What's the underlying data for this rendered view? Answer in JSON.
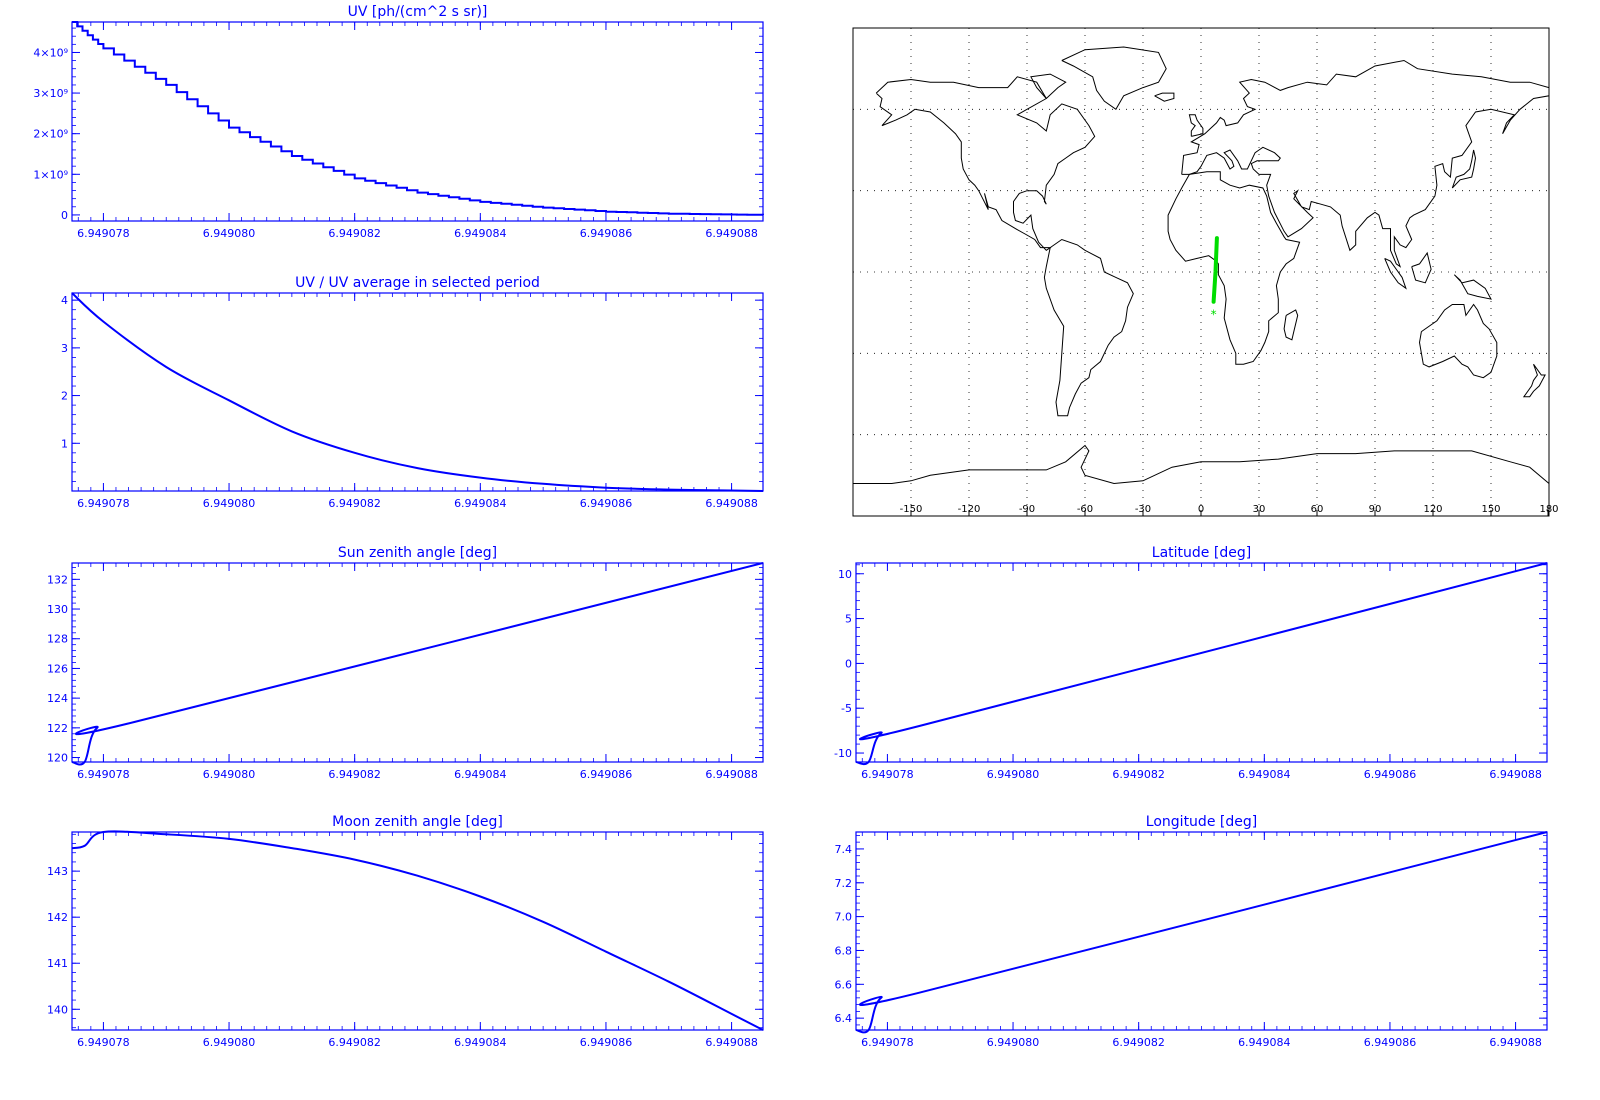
{
  "chart_data": [
    {
      "type": "step",
      "title": "UV [ph/(cm^2 s sr)]",
      "xlim": [
        6.9490775,
        6.9490885
      ],
      "ylim": [
        -0.15,
        4.75
      ],
      "x_tick_labels": [
        "6.949078",
        "6.949080",
        "6.949082",
        "6.949084",
        "6.949086",
        "6.949088"
      ],
      "y_ticks": [
        0,
        1,
        2,
        3,
        4
      ],
      "y_tick_labels": [
        "0",
        "1×10⁹",
        "2×10⁹",
        "3×10⁹",
        "4×10⁹"
      ],
      "y_unit_multiplier": 1000000000,
      "color": "#0000ff",
      "series": [
        {
          "x": [
            6.9490775,
            6.949078,
            6.949079,
            6.94908,
            6.949081,
            6.949082,
            6.949083,
            6.949084,
            6.949085,
            6.949086,
            6.949087,
            6.949088,
            6.9490885
          ],
          "y": [
            4.75,
            4.1,
            3.2,
            2.15,
            1.45,
            0.9,
            0.55,
            0.32,
            0.18,
            0.08,
            0.03,
            0.01,
            0.0
          ]
        }
      ]
    },
    {
      "type": "line",
      "title": "UV / UV average in selected period",
      "xlim": [
        6.9490775,
        6.9490885
      ],
      "ylim": [
        0,
        4.15
      ],
      "x_tick_labels": [
        "6.949078",
        "6.949080",
        "6.949082",
        "6.949084",
        "6.949086",
        "6.949088"
      ],
      "y_ticks": [
        1,
        2,
        3,
        4
      ],
      "y_tick_labels": [
        "1",
        "2",
        "3",
        "4"
      ],
      "color": "#0000ff",
      "series": [
        {
          "x": [
            6.9490775,
            6.949078,
            6.949079,
            6.94908,
            6.949081,
            6.949082,
            6.949083,
            6.949084,
            6.949085,
            6.949086,
            6.949087,
            6.949088,
            6.9490885
          ],
          "y": [
            4.15,
            3.55,
            2.6,
            1.9,
            1.25,
            0.8,
            0.48,
            0.28,
            0.15,
            0.07,
            0.03,
            0.01,
            0.0
          ]
        }
      ]
    },
    {
      "type": "line",
      "title": "Sun zenith angle [deg]",
      "xlim": [
        6.9490775,
        6.9490885
      ],
      "ylim": [
        119.7,
        133.1
      ],
      "x_tick_labels": [
        "6.949078",
        "6.949080",
        "6.949082",
        "6.949084",
        "6.949086",
        "6.949088"
      ],
      "y_ticks": [
        120,
        122,
        124,
        126,
        128,
        130,
        132
      ],
      "y_tick_labels": [
        "120",
        "122",
        "124",
        "126",
        "128",
        "130",
        "132"
      ],
      "color": "#0000ff",
      "series": [
        {
          "x": [
            6.9490775,
            6.9490777,
            6.9490779,
            6.9490785,
            6.9490885
          ],
          "y": [
            119.7,
            119.7,
            122.0,
            122.4,
            133.1
          ]
        }
      ]
    },
    {
      "type": "line",
      "title": "Latitude [deg]",
      "xlim": [
        6.9490775,
        6.9490885
      ],
      "ylim": [
        -11,
        11.2
      ],
      "x_tick_labels": [
        "6.949078",
        "6.949080",
        "6.949082",
        "6.949084",
        "6.949086",
        "6.949088"
      ],
      "y_ticks": [
        -10,
        -5,
        0,
        5,
        10
      ],
      "y_tick_labels": [
        "-10",
        "-5",
        "0",
        "5",
        "10"
      ],
      "color": "#0000ff",
      "series": [
        {
          "x": [
            6.9490775,
            6.9490777,
            6.9490779,
            6.9490785,
            6.9490885
          ],
          "y": [
            -11.0,
            -11.0,
            -7.8,
            -7.0,
            11.2
          ]
        }
      ]
    },
    {
      "type": "line",
      "title": "Moon zenith angle [deg]",
      "xlim": [
        6.9490775,
        6.9490885
      ],
      "ylim": [
        139.55,
        143.85
      ],
      "x_tick_labels": [
        "6.949078",
        "6.949080",
        "6.949082",
        "6.949084",
        "6.949086",
        "6.949088"
      ],
      "y_ticks": [
        140,
        141,
        142,
        143
      ],
      "y_tick_labels": [
        "140",
        "141",
        "142",
        "143"
      ],
      "color": "#0000ff",
      "series": [
        {
          "x": [
            6.9490775,
            6.9490777,
            6.949078,
            6.949079,
            6.94908,
            6.949081,
            6.949082,
            6.949083,
            6.949084,
            6.949085,
            6.949086,
            6.949087,
            6.949088,
            6.9490885
          ],
          "y": [
            143.5,
            143.55,
            143.85,
            143.8,
            143.7,
            143.5,
            143.25,
            142.9,
            142.45,
            141.9,
            141.25,
            140.6,
            139.9,
            139.55
          ]
        }
      ]
    },
    {
      "type": "line",
      "title": "Longitude [deg]",
      "xlim": [
        6.9490775,
        6.9490885
      ],
      "ylim": [
        6.33,
        7.5
      ],
      "x_tick_labels": [
        "6.949078",
        "6.949080",
        "6.949082",
        "6.949084",
        "6.949086",
        "6.949088"
      ],
      "y_ticks": [
        6.4,
        6.6,
        6.8,
        7.0,
        7.2,
        7.4
      ],
      "y_tick_labels": [
        "6.4",
        "6.6",
        "6.8",
        "7.0",
        "7.2",
        "7.4"
      ],
      "color": "#0000ff",
      "series": [
        {
          "x": [
            6.9490775,
            6.9490777,
            6.9490779,
            6.9490785,
            6.9490885
          ],
          "y": [
            6.33,
            6.33,
            6.52,
            6.55,
            7.5
          ]
        }
      ]
    },
    {
      "type": "map",
      "projection": "equirectangular",
      "lon_ticks": [
        -150,
        -120,
        -90,
        -60,
        -30,
        0,
        30,
        60,
        90,
        120,
        150,
        180
      ],
      "lon_tick_labels": [
        "-150",
        "-120",
        "-90",
        "-60",
        "-30",
        "0",
        "30",
        "60",
        "90",
        "120",
        "150",
        "180"
      ],
      "lat_grid": [
        -60,
        -30,
        0,
        30,
        60
      ],
      "grid": "dotted",
      "coastline_color": "#000000",
      "track_color": "#00dd00",
      "track": {
        "lon": [
          8.2,
          7.5,
          6.5
        ],
        "lat": [
          12.5,
          0,
          -11
        ]
      },
      "end_marker": {
        "lon": 6.5,
        "lat": -15,
        "symbol": "*"
      }
    }
  ]
}
